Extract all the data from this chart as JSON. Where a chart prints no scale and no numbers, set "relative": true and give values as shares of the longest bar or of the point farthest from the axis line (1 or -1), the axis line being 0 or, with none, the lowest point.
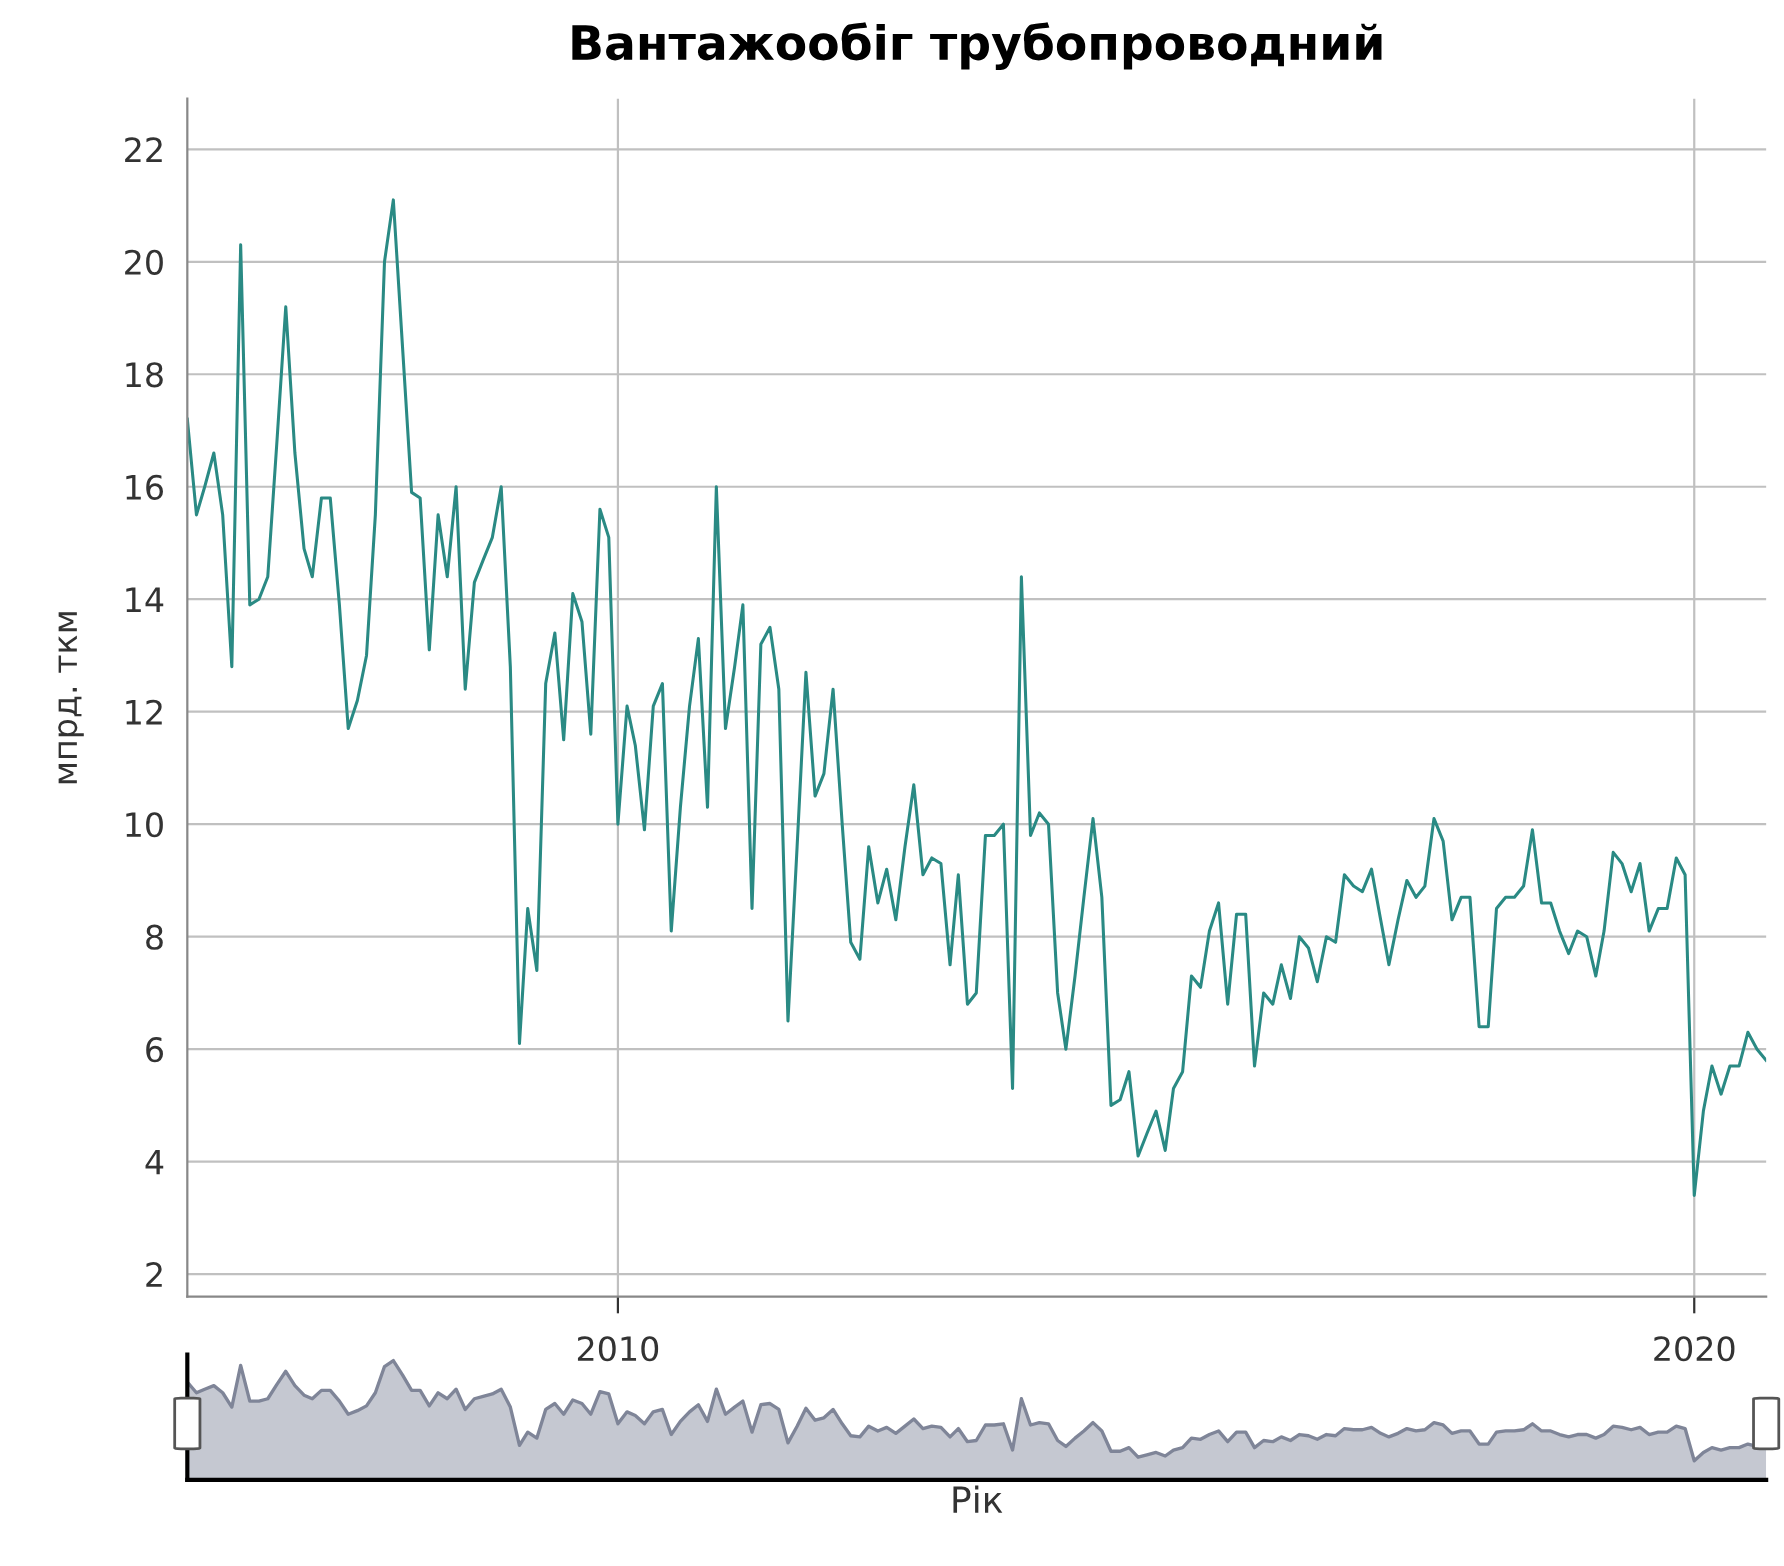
{
  "chart_data": [
    {
      "type": "line",
      "title": "Вантажообіг трубопроводний",
      "ylabel": "мпрд. ткм",
      "xlim": [
        "2006-01",
        "2020-09"
      ],
      "xticks": [
        "2010",
        "2020"
      ],
      "ylim": [
        1.6,
        22.9
      ],
      "yticks": [
        2,
        4,
        6,
        8,
        10,
        12,
        14,
        16,
        18,
        20,
        22
      ],
      "grid": true,
      "marker": "none",
      "line_style": "solid",
      "x": [
        "2006-01",
        "2006-02",
        "2006-03",
        "2006-04",
        "2006-05",
        "2006-06",
        "2006-07",
        "2006-08",
        "2006-09",
        "2006-10",
        "2006-11",
        "2006-12",
        "2007-01",
        "2007-02",
        "2007-03",
        "2007-04",
        "2007-05",
        "2007-06",
        "2007-07",
        "2007-08",
        "2007-09",
        "2007-10",
        "2007-11",
        "2007-12",
        "2008-01",
        "2008-02",
        "2008-03",
        "2008-04",
        "2008-05",
        "2008-06",
        "2008-07",
        "2008-08",
        "2008-09",
        "2008-10",
        "2008-11",
        "2008-12",
        "2009-01",
        "2009-02",
        "2009-03",
        "2009-04",
        "2009-05",
        "2009-06",
        "2009-07",
        "2009-08",
        "2009-09",
        "2009-10",
        "2009-11",
        "2009-12",
        "2010-01",
        "2010-02",
        "2010-03",
        "2010-04",
        "2010-05",
        "2010-06",
        "2010-07",
        "2010-08",
        "2010-09",
        "2010-10",
        "2010-11",
        "2010-12",
        "2011-01",
        "2011-02",
        "2011-03",
        "2011-04",
        "2011-05",
        "2011-06",
        "2011-07",
        "2011-08",
        "2011-09",
        "2011-10",
        "2011-11",
        "2011-12",
        "2012-01",
        "2012-02",
        "2012-03",
        "2012-04",
        "2012-05",
        "2012-06",
        "2012-07",
        "2012-08",
        "2012-09",
        "2012-10",
        "2012-11",
        "2012-12",
        "2013-01",
        "2013-02",
        "2013-03",
        "2013-04",
        "2013-05",
        "2013-06",
        "2013-07",
        "2013-08",
        "2013-09",
        "2013-10",
        "2013-11",
        "2013-12",
        "2014-01",
        "2014-02",
        "2014-03",
        "2014-04",
        "2014-05",
        "2014-06",
        "2014-07",
        "2014-08",
        "2014-09",
        "2014-10",
        "2014-11",
        "2014-12",
        "2015-01",
        "2015-02",
        "2015-03",
        "2015-04",
        "2015-05",
        "2015-06",
        "2015-07",
        "2015-08",
        "2015-09",
        "2015-10",
        "2015-11",
        "2015-12",
        "2016-01",
        "2016-02",
        "2016-03",
        "2016-04",
        "2016-05",
        "2016-06",
        "2016-07",
        "2016-08",
        "2016-09",
        "2016-10",
        "2016-11",
        "2016-12",
        "2017-01",
        "2017-02",
        "2017-03",
        "2017-04",
        "2017-05",
        "2017-06",
        "2017-07",
        "2017-08",
        "2017-09",
        "2017-10",
        "2017-11",
        "2017-12",
        "2018-01",
        "2018-02",
        "2018-03",
        "2018-04",
        "2018-05",
        "2018-06",
        "2018-07",
        "2018-08",
        "2018-09",
        "2018-10",
        "2018-11",
        "2018-12",
        "2019-01",
        "2019-02",
        "2019-03",
        "2019-04",
        "2019-05",
        "2019-06",
        "2019-07",
        "2019-08",
        "2019-09",
        "2019-10",
        "2019-11",
        "2019-12",
        "2020-01",
        "2020-02",
        "2020-03",
        "2020-04",
        "2020-05",
        "2020-06",
        "2020-07",
        "2020-08",
        "2020-09"
      ],
      "series": [
        {
          "color": "#2a8a84",
          "values": [
            17.2,
            15.5,
            16.0,
            16.6,
            15.5,
            12.8,
            20.3,
            13.9,
            14.0,
            14.4,
            16.8,
            19.2,
            16.6,
            14.9,
            14.4,
            15.8,
            15.8,
            13.9,
            11.7,
            12.2,
            13.0,
            15.5,
            20.0,
            21.1,
            18.5,
            15.9,
            15.8,
            13.1,
            15.5,
            14.4,
            16.0,
            12.4,
            14.3,
            14.7,
            15.1,
            16.0,
            12.8,
            6.1,
            8.5,
            7.4,
            12.5,
            13.4,
            11.5,
            14.1,
            13.6,
            11.6,
            15.6,
            15.1,
            10.0,
            12.1,
            11.4,
            9.9,
            12.1,
            12.5,
            8.1,
            10.3,
            12.1,
            13.3,
            10.3,
            16.0,
            11.7,
            12.8,
            13.9,
            8.5,
            13.2,
            13.5,
            12.4,
            6.5,
            9.6,
            12.7,
            10.5,
            10.9,
            12.4,
            10.0,
            7.9,
            7.6,
            9.6,
            8.6,
            9.2,
            8.3,
            9.6,
            10.7,
            9.1,
            9.4,
            9.3,
            7.5,
            9.1,
            6.8,
            7.0,
            9.8,
            9.8,
            10.0,
            5.3,
            14.4,
            9.8,
            10.2,
            10.0,
            7.0,
            6.0,
            7.3,
            8.7,
            10.1,
            8.7,
            5.0,
            5.1,
            5.6,
            4.1,
            4.5,
            4.9,
            4.2,
            5.3,
            5.6,
            7.3,
            7.1,
            8.1,
            8.6,
            6.8,
            8.4,
            8.4,
            5.7,
            7.0,
            6.8,
            7.5,
            6.9,
            8.0,
            7.8,
            7.2,
            8.0,
            7.9,
            9.1,
            8.9,
            8.8,
            9.2,
            8.3,
            7.5,
            8.3,
            9.0,
            8.7,
            8.9,
            10.1,
            9.7,
            8.3,
            8.7,
            8.7,
            6.4,
            6.4,
            8.5,
            8.7,
            8.7,
            8.9,
            9.9,
            8.6,
            8.6,
            8.1,
            7.7,
            8.1,
            8.0,
            7.3,
            8.1,
            9.5,
            9.3,
            8.8,
            9.3,
            8.1,
            8.5,
            8.5,
            9.4,
            9.1,
            3.4,
            4.9,
            5.7,
            5.2,
            5.7,
            5.7,
            6.3,
            6.0,
            5.8
          ]
        }
      ]
    },
    {
      "type": "area",
      "relative": true,
      "xlabel": "Рік",
      "xlim": [
        "2006-01",
        "2020-09"
      ],
      "tick_labels": false,
      "x": [
        "2006-01",
        "2006-02",
        "2006-03",
        "2006-04",
        "2006-05",
        "2006-06",
        "2006-07",
        "2006-08",
        "2006-09",
        "2006-10",
        "2006-11",
        "2006-12",
        "2007-01",
        "2007-02",
        "2007-03",
        "2007-04",
        "2007-05",
        "2007-06",
        "2007-07",
        "2007-08",
        "2007-09",
        "2007-10",
        "2007-11",
        "2007-12",
        "2008-01",
        "2008-02",
        "2008-03",
        "2008-04",
        "2008-05",
        "2008-06",
        "2008-07",
        "2008-08",
        "2008-09",
        "2008-10",
        "2008-11",
        "2008-12",
        "2009-01",
        "2009-02",
        "2009-03",
        "2009-04",
        "2009-05",
        "2009-06",
        "2009-07",
        "2009-08",
        "2009-09",
        "2009-10",
        "2009-11",
        "2009-12",
        "2010-01",
        "2010-02",
        "2010-03",
        "2010-04",
        "2010-05",
        "2010-06",
        "2010-07",
        "2010-08",
        "2010-09",
        "2010-10",
        "2010-11",
        "2010-12",
        "2011-01",
        "2011-02",
        "2011-03",
        "2011-04",
        "2011-05",
        "2011-06",
        "2011-07",
        "2011-08",
        "2011-09",
        "2011-10",
        "2011-11",
        "2011-12",
        "2012-01",
        "2012-02",
        "2012-03",
        "2012-04",
        "2012-05",
        "2012-06",
        "2012-07",
        "2012-08",
        "2012-09",
        "2012-10",
        "2012-11",
        "2012-12",
        "2013-01",
        "2013-02",
        "2013-03",
        "2013-04",
        "2013-05",
        "2013-06",
        "2013-07",
        "2013-08",
        "2013-09",
        "2013-10",
        "2013-11",
        "2013-12",
        "2014-01",
        "2014-02",
        "2014-03",
        "2014-04",
        "2014-05",
        "2014-06",
        "2014-07",
        "2014-08",
        "2014-09",
        "2014-10",
        "2014-11",
        "2014-12",
        "2015-01",
        "2015-02",
        "2015-03",
        "2015-04",
        "2015-05",
        "2015-06",
        "2015-07",
        "2015-08",
        "2015-09",
        "2015-10",
        "2015-11",
        "2015-12",
        "2016-01",
        "2016-02",
        "2016-03",
        "2016-04",
        "2016-05",
        "2016-06",
        "2016-07",
        "2016-08",
        "2016-09",
        "2016-10",
        "2016-11",
        "2016-12",
        "2017-01",
        "2017-02",
        "2017-03",
        "2017-04",
        "2017-05",
        "2017-06",
        "2017-07",
        "2017-08",
        "2017-09",
        "2017-10",
        "2017-11",
        "2017-12",
        "2018-01",
        "2018-02",
        "2018-03",
        "2018-04",
        "2018-05",
        "2018-06",
        "2018-07",
        "2018-08",
        "2018-09",
        "2018-10",
        "2018-11",
        "2018-12",
        "2019-01",
        "2019-02",
        "2019-03",
        "2019-04",
        "2019-05",
        "2019-06",
        "2019-07",
        "2019-08",
        "2019-09",
        "2019-10",
        "2019-11",
        "2019-12",
        "2020-01",
        "2020-02",
        "2020-03",
        "2020-04",
        "2020-05",
        "2020-06",
        "2020-07",
        "2020-08",
        "2020-09"
      ],
      "series": [
        {
          "color": "#7f8598",
          "values": [
            0.82,
            0.73,
            0.76,
            0.79,
            0.73,
            0.61,
            0.96,
            0.66,
            0.66,
            0.68,
            0.8,
            0.91,
            0.79,
            0.71,
            0.68,
            0.75,
            0.75,
            0.66,
            0.55,
            0.58,
            0.62,
            0.73,
            0.95,
            1,
            0.88,
            0.75,
            0.75,
            0.62,
            0.73,
            0.68,
            0.76,
            0.59,
            0.68,
            0.7,
            0.72,
            0.76,
            0.61,
            0.29,
            0.4,
            0.35,
            0.59,
            0.64,
            0.55,
            0.67,
            0.64,
            0.55,
            0.74,
            0.72,
            0.47,
            0.57,
            0.54,
            0.47,
            0.57,
            0.59,
            0.38,
            0.49,
            0.57,
            0.63,
            0.49,
            0.76,
            0.55,
            0.61,
            0.66,
            0.4,
            0.63,
            0.64,
            0.59,
            0.31,
            0.45,
            0.6,
            0.5,
            0.52,
            0.59,
            0.47,
            0.37,
            0.36,
            0.45,
            0.41,
            0.44,
            0.39,
            0.45,
            0.51,
            0.43,
            0.45,
            0.44,
            0.36,
            0.43,
            0.32,
            0.33,
            0.46,
            0.46,
            0.47,
            0.25,
            0.68,
            0.46,
            0.48,
            0.47,
            0.33,
            0.28,
            0.35,
            0.41,
            0.48,
            0.41,
            0.24,
            0.24,
            0.27,
            0.19,
            0.21,
            0.23,
            0.2,
            0.25,
            0.27,
            0.35,
            0.34,
            0.38,
            0.41,
            0.32,
            0.4,
            0.4,
            0.27,
            0.33,
            0.32,
            0.36,
            0.33,
            0.38,
            0.37,
            0.34,
            0.38,
            0.37,
            0.43,
            0.42,
            0.42,
            0.44,
            0.39,
            0.36,
            0.39,
            0.43,
            0.41,
            0.42,
            0.48,
            0.46,
            0.39,
            0.41,
            0.41,
            0.3,
            0.3,
            0.4,
            0.41,
            0.41,
            0.42,
            0.47,
            0.41,
            0.41,
            0.38,
            0.36,
            0.38,
            0.38,
            0.35,
            0.38,
            0.45,
            0.44,
            0.42,
            0.44,
            0.38,
            0.4,
            0.4,
            0.45,
            0.43,
            0.16,
            0.23,
            0.27,
            0.25,
            0.27,
            0.27,
            0.3,
            0.28,
            0.27
          ]
        }
      ]
    }
  ]
}
